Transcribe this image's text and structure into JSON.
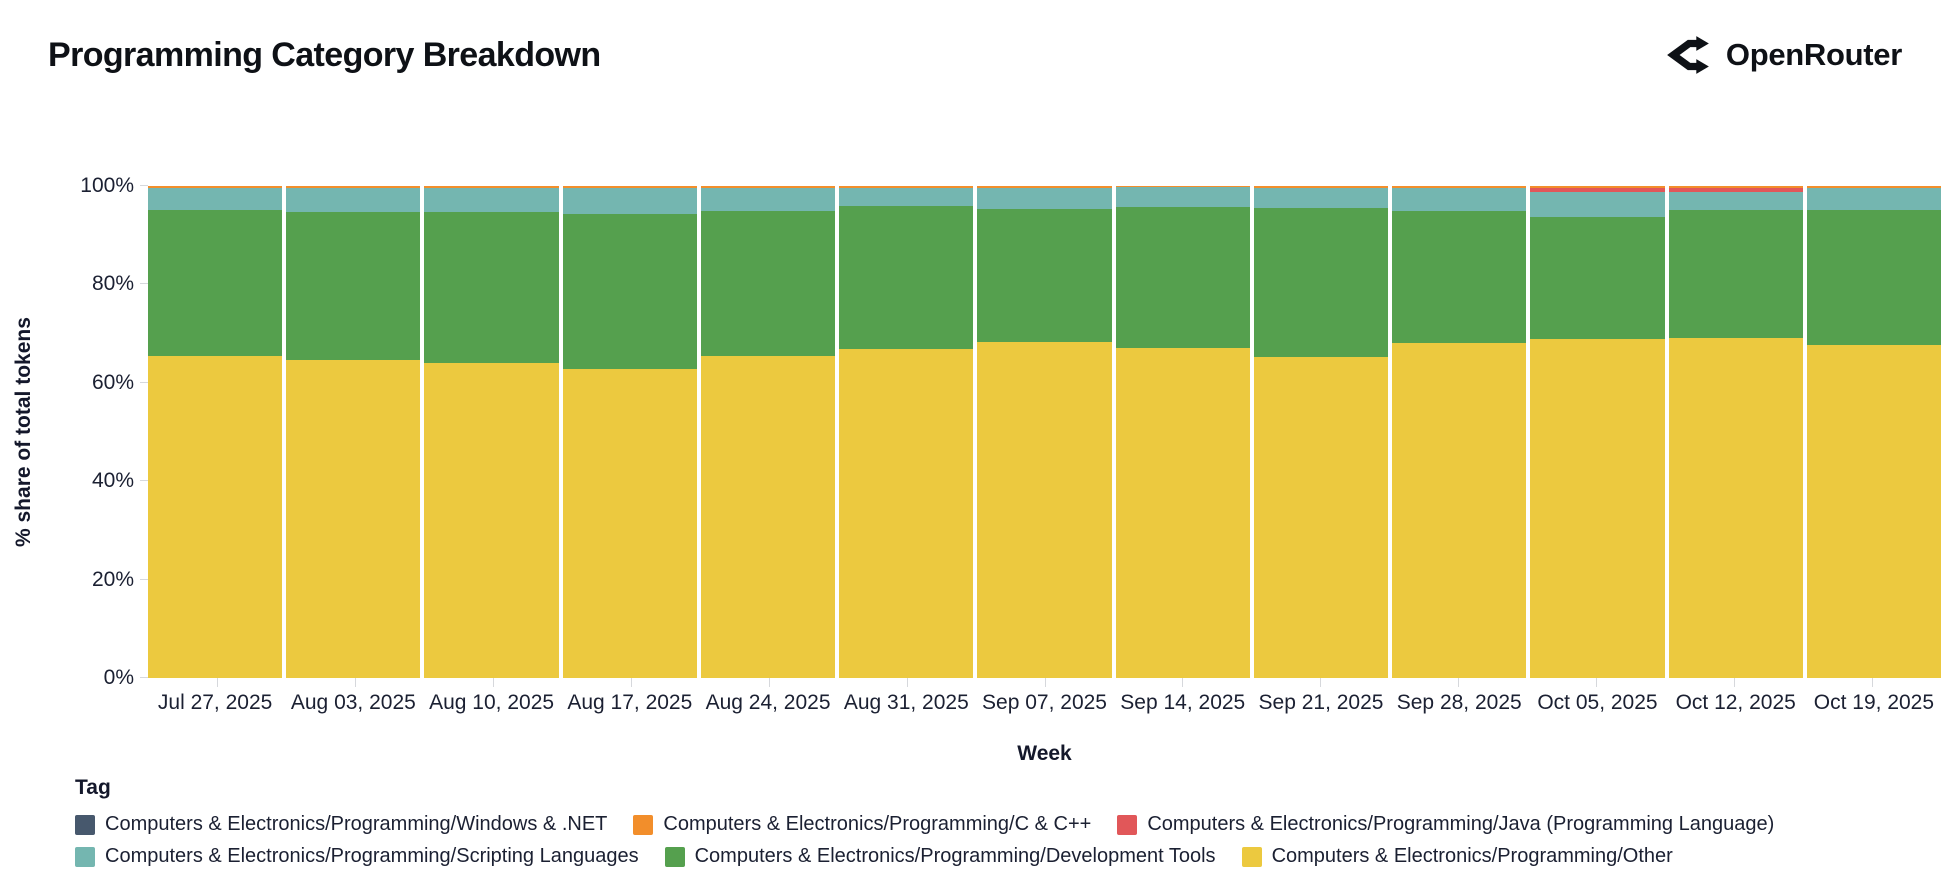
{
  "header": {
    "title": "Programming Category Breakdown",
    "brand": "OpenRouter"
  },
  "chart_data": {
    "type": "bar",
    "stacked": true,
    "normalized_to_100": true,
    "title": "Programming Category Breakdown",
    "xlabel": "Week",
    "ylabel": "% share of total tokens",
    "ylim": [
      0,
      100
    ],
    "yticks": [
      "0%",
      "20%",
      "40%",
      "60%",
      "80%",
      "100%"
    ],
    "grid": false,
    "categories": [
      "Jul 27, 2025",
      "Aug 03, 2025",
      "Aug 10, 2025",
      "Aug 17, 2025",
      "Aug 24, 2025",
      "Aug 31, 2025",
      "Sep 07, 2025",
      "Sep 14, 2025",
      "Sep 21, 2025",
      "Sep 28, 2025",
      "Oct 05, 2025",
      "Oct 12, 2025",
      "Oct 19, 2025"
    ],
    "series": [
      {
        "id": "other",
        "name": "Computers & Electronics/Programming/Other",
        "color": "#ecc93f",
        "values": [
          65.5,
          64.6,
          64.0,
          62.8,
          65.5,
          66.8,
          68.2,
          67.0,
          65.2,
          68.0,
          68.9,
          69.2,
          67.7
        ]
      },
      {
        "id": "dev_tools",
        "name": "Computers & Electronics/Programming/Development Tools",
        "color": "#55a04e",
        "values": [
          29.6,
          30.2,
          30.7,
          31.5,
          29.5,
          29.1,
          27.1,
          28.7,
          30.3,
          27.0,
          24.9,
          25.9,
          27.5
        ]
      },
      {
        "id": "scripting",
        "name": "Computers & Electronics/Programming/Scripting Languages",
        "color": "#74b6b0",
        "values": [
          4.6,
          4.8,
          4.9,
          5.3,
          4.7,
          3.8,
          4.4,
          4.1,
          4.2,
          4.6,
          4.9,
          3.6,
          4.4
        ]
      },
      {
        "id": "java",
        "name": "Computers & Electronics/Programming/Java (Programming Language)",
        "color": "#e15759",
        "values": [
          0,
          0,
          0,
          0,
          0,
          0,
          0,
          0,
          0,
          0,
          1.0,
          1.0,
          0
        ]
      },
      {
        "id": "c_cpp",
        "name": "Computers & Electronics/Programming/C & C++",
        "color": "#f28e2b",
        "values": [
          0.3,
          0.4,
          0.4,
          0.4,
          0.3,
          0.3,
          0.3,
          0.2,
          0.3,
          0.4,
          0.3,
          0.3,
          0.4
        ]
      },
      {
        "id": "windows_net",
        "name": "Computers & Electronics/Programming/Windows & .NET",
        "color": "#47586d",
        "texture": "dots",
        "values": [
          0,
          0,
          0,
          0,
          0,
          0,
          0,
          0,
          0,
          0,
          0,
          0,
          0
        ]
      }
    ],
    "legend": {
      "title": "Tag",
      "position": "bottom-left",
      "rows": [
        [
          "windows_net",
          "c_cpp",
          "java"
        ],
        [
          "scripting",
          "dev_tools",
          "other"
        ]
      ]
    }
  }
}
